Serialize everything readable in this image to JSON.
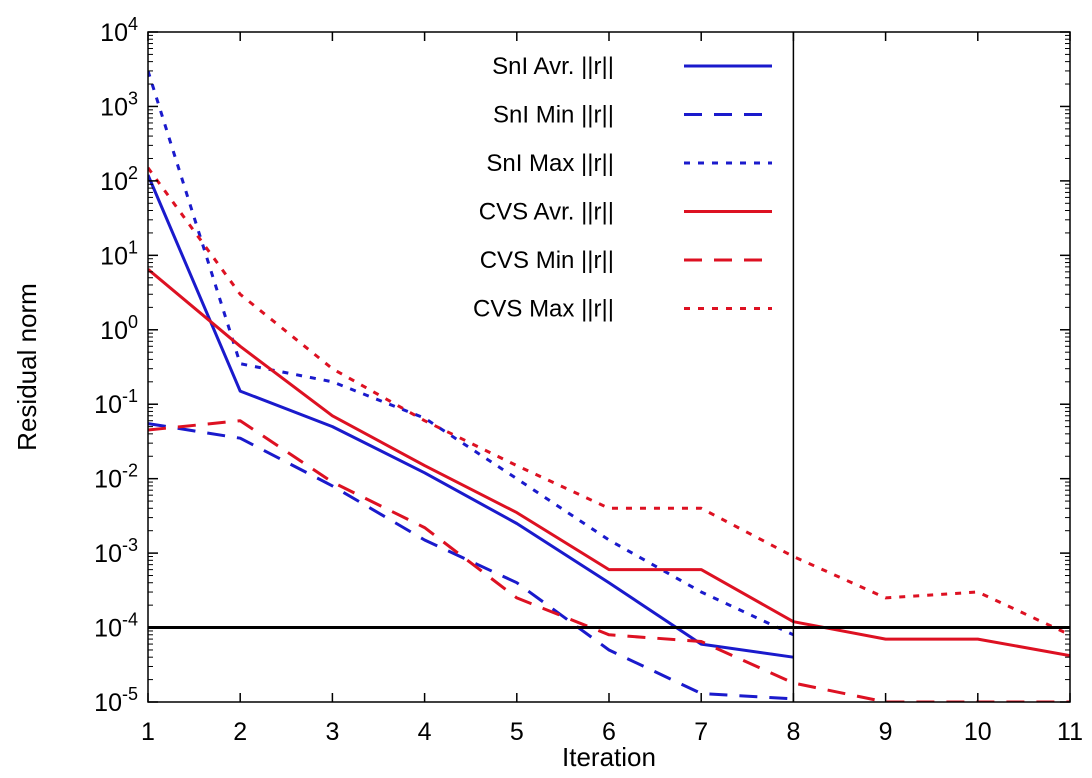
{
  "chart_data": {
    "type": "line",
    "title": "",
    "xlabel": "Iteration",
    "ylabel": "Residual norm",
    "xlim": [
      1,
      11
    ],
    "ylim": [
      1e-05,
      10000
    ],
    "yscale": "log",
    "grid": false,
    "legend_position": "top-center",
    "x_ticks": [
      "1",
      "2",
      "3",
      "4",
      "5",
      "6",
      "7",
      "8",
      "9",
      "10",
      "11"
    ],
    "y_ticks": [
      {
        "value": 1e-05,
        "base": "10",
        "exp": "-5"
      },
      {
        "value": 0.0001,
        "base": "10",
        "exp": "-4"
      },
      {
        "value": 0.001,
        "base": "10",
        "exp": "-3"
      },
      {
        "value": 0.01,
        "base": "10",
        "exp": "-2"
      },
      {
        "value": 0.1,
        "base": "10",
        "exp": "-1"
      },
      {
        "value": 1,
        "base": "10",
        "exp": "0"
      },
      {
        "value": 10,
        "base": "10",
        "exp": "1"
      },
      {
        "value": 100,
        "base": "10",
        "exp": "2"
      },
      {
        "value": 1000,
        "base": "10",
        "exp": "3"
      },
      {
        "value": 10000,
        "base": "10",
        "exp": "4"
      }
    ],
    "reference_lines": [
      {
        "orientation": "horizontal",
        "value": 0.0001,
        "color": "#000000"
      },
      {
        "orientation": "vertical",
        "value": 8,
        "color": "#000000"
      }
    ],
    "series": [
      {
        "name": "SnI Avr. ||r||",
        "color": "#1a1acc",
        "dash": "solid",
        "x": [
          1,
          2,
          3,
          4,
          5,
          6,
          7,
          8
        ],
        "y": [
          120,
          0.15,
          0.05,
          0.012,
          0.0025,
          0.0004,
          6e-05,
          4e-05
        ]
      },
      {
        "name": "SnI Min ||r||",
        "color": "#1a1acc",
        "dash": "dashed",
        "x": [
          1,
          2,
          3,
          4,
          5,
          6,
          7,
          8
        ],
        "y": [
          0.055,
          0.035,
          0.008,
          0.0015,
          0.0004,
          5e-05,
          1.3e-05,
          1.1e-05
        ]
      },
      {
        "name": "SnI Max ||r||",
        "color": "#1a1acc",
        "dash": "dotted",
        "x": [
          1,
          2,
          3,
          4,
          5,
          6,
          7,
          8
        ],
        "y": [
          3000,
          0.35,
          0.2,
          0.065,
          0.01,
          0.0015,
          0.0003,
          8e-05
        ]
      },
      {
        "name": "CVS Avr. ||r||",
        "color": "#dd1122",
        "dash": "solid",
        "x": [
          1,
          2,
          3,
          4,
          5,
          6,
          7,
          8,
          9,
          10,
          11
        ],
        "y": [
          6.5,
          0.6,
          0.07,
          0.015,
          0.0035,
          0.0006,
          0.0006,
          0.00012,
          7e-05,
          7e-05,
          4.2e-05
        ]
      },
      {
        "name": "CVS Min ||r||",
        "color": "#dd1122",
        "dash": "dashed",
        "x": [
          1,
          2,
          3,
          4,
          5,
          6,
          7,
          8,
          9,
          10,
          11
        ],
        "y": [
          0.045,
          0.06,
          0.009,
          0.0022,
          0.00025,
          8e-05,
          6.5e-05,
          1.8e-05,
          1e-05,
          1e-05,
          1e-05
        ]
      },
      {
        "name": "CVS Max ||r||",
        "color": "#dd1122",
        "dash": "dotted",
        "x": [
          1,
          2,
          3,
          4,
          5,
          6,
          7,
          8,
          9,
          10,
          11
        ],
        "y": [
          150,
          3,
          0.3,
          0.06,
          0.015,
          0.004,
          0.004,
          0.0009,
          0.00025,
          0.0003,
          8e-05
        ]
      }
    ]
  }
}
